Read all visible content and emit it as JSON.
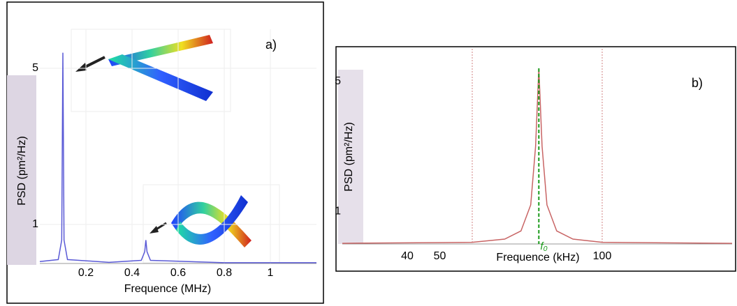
{
  "chart_data": [
    {
      "type": "line",
      "label": "a)",
      "xlabel": "Frequence (MHz)",
      "ylabel": "PSD (pm²/Hz)",
      "xlim": [
        0,
        1.2
      ],
      "ylim": [
        0,
        6
      ],
      "xticks": [
        0.2,
        0.4,
        0.6,
        0.8,
        1
      ],
      "yticks": [
        1,
        5
      ],
      "grid": true,
      "series": [
        {
          "color": "#5a5ad6",
          "x": [
            0,
            0.08,
            0.095,
            0.1,
            0.105,
            0.12,
            0.3,
            0.44,
            0.455,
            0.46,
            0.465,
            0.48,
            0.8,
            1.2
          ],
          "values": [
            0.05,
            0.1,
            0.6,
            5.4,
            0.6,
            0.1,
            0.03,
            0.08,
            0.3,
            0.6,
            0.3,
            0.08,
            0.02,
            0.02
          ]
        }
      ]
    },
    {
      "type": "line",
      "label": "b)",
      "xlabel": "Frequence (kHz)",
      "ylabel": "PSD (pm²/Hz)",
      "xlim": [
        20,
        140
      ],
      "ylim": [
        0,
        6
      ],
      "xticks": [
        40,
        50,
        100
      ],
      "yticks": [
        1,
        5
      ],
      "vlines": [
        60,
        100
      ],
      "annotation": {
        "text": "f₀",
        "x": 80.5
      },
      "series": [
        {
          "color": "#c86464",
          "x": [
            20,
            60,
            70,
            75,
            78,
            79.5,
            80.5,
            81.5,
            83,
            86,
            91,
            100,
            140
          ],
          "values": [
            0.02,
            0.05,
            0.15,
            0.4,
            1.2,
            3.0,
            5.4,
            3.0,
            1.2,
            0.4,
            0.15,
            0.05,
            0.02
          ]
        }
      ]
    }
  ]
}
